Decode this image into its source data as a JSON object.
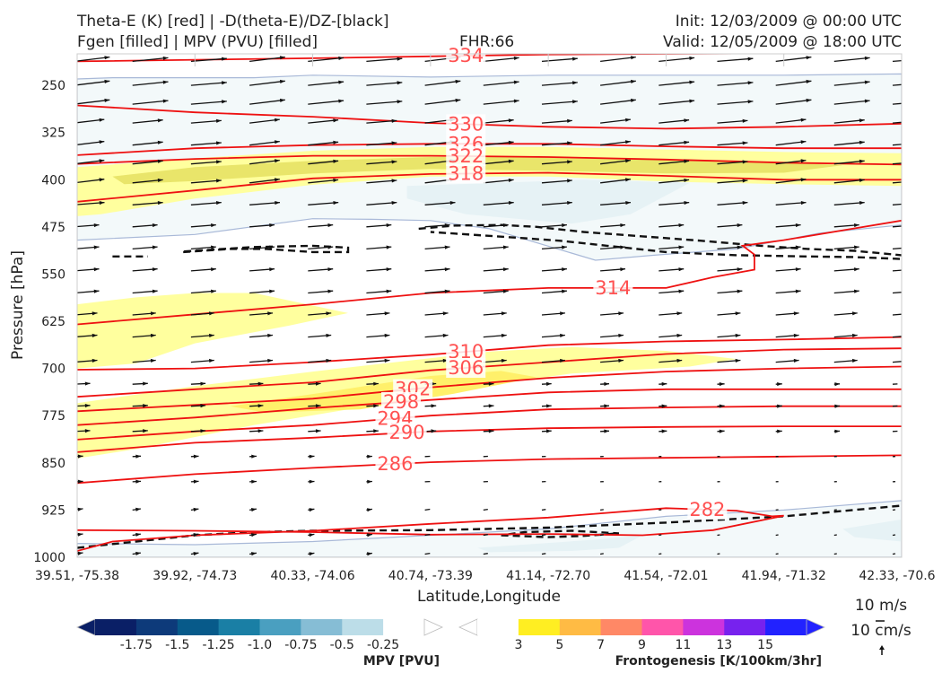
{
  "header": {
    "title_line1": "Theta-E (K) [red] | -D(theta-E)/DZ-[black]",
    "title_line2": "Fgen [filled] | MPV (PVU) [filled]",
    "fhr": "FHR:66",
    "init": "Init: 12/03/2009 @ 00:00 UTC",
    "valid": "Valid: 12/05/2009 @ 18:00 UTC"
  },
  "chart_data": {
    "type": "cross-section",
    "xlabel": "Latitude,Longitude",
    "ylabel": "Pressure [hPa]",
    "x_ticks": [
      "39.51, -75.38",
      "39.92, -74.73",
      "40.33, -74.06",
      "40.74, -73.39",
      "41.14, -72.70",
      "41.54, -72.01",
      "41.94, -71.32",
      "42.33, -70.6"
    ],
    "y_ticks": [
      250,
      325,
      400,
      475,
      550,
      625,
      700,
      775,
      850,
      925,
      1000
    ],
    "ylim": [
      1000,
      200
    ],
    "theta_e_contours": [
      {
        "value": 334,
        "label": "334",
        "p": [
          [
            0,
            212
          ],
          [
            2,
            207
          ],
          [
            4,
            201
          ],
          [
            6,
            199
          ],
          [
            7,
            199
          ]
        ],
        "lx": 3.3
      },
      {
        "value": 330,
        "label": "330",
        "p": [
          [
            0,
            282
          ],
          [
            1,
            293
          ],
          [
            2,
            300
          ],
          [
            3,
            310
          ],
          [
            4,
            316
          ],
          [
            5,
            319
          ],
          [
            6,
            316
          ],
          [
            7,
            311
          ]
        ],
        "lx": 3.3
      },
      {
        "value": 326,
        "label": "326",
        "p": [
          [
            0,
            361
          ],
          [
            1,
            350
          ],
          [
            2,
            345
          ],
          [
            3,
            343
          ],
          [
            4,
            343
          ],
          [
            5,
            347
          ],
          [
            6,
            350
          ],
          [
            7,
            350
          ]
        ],
        "lx": 3.3
      },
      {
        "value": 322,
        "label": "322",
        "p": [
          [
            0,
            375
          ],
          [
            1,
            367
          ],
          [
            2,
            362
          ],
          [
            3,
            362
          ],
          [
            4,
            364
          ],
          [
            5,
            368
          ],
          [
            6,
            373
          ],
          [
            7,
            376
          ]
        ],
        "lx": 3.3
      },
      {
        "value": 318,
        "label": "318",
        "p": [
          [
            0,
            435
          ],
          [
            1,
            417
          ],
          [
            2,
            398
          ],
          [
            3,
            391
          ],
          [
            4,
            389
          ],
          [
            5,
            394
          ],
          [
            6,
            400
          ],
          [
            7,
            400
          ]
        ],
        "lx": 3.3
      },
      {
        "value": 314,
        "label": "314",
        "p": [
          [
            0,
            630
          ],
          [
            1,
            614
          ],
          [
            2,
            598
          ],
          [
            3,
            580
          ],
          [
            4,
            572
          ],
          [
            5,
            572
          ],
          [
            5.4,
            555
          ],
          [
            5.75,
            543
          ],
          [
            5.75,
            519
          ],
          [
            5.65,
            505
          ],
          [
            6,
            496
          ],
          [
            7,
            465
          ]
        ],
        "lx": 4.55
      },
      {
        "value": 310,
        "label": "310",
        "p": [
          [
            0,
            702
          ],
          [
            1,
            700
          ],
          [
            2,
            690
          ],
          [
            3,
            678
          ],
          [
            4,
            663
          ],
          [
            5,
            657
          ],
          [
            6,
            654
          ],
          [
            7,
            650
          ]
        ],
        "lx": 3.3
      },
      {
        "value": 306,
        "label": "306",
        "p": [
          [
            0,
            745
          ],
          [
            1,
            733
          ],
          [
            2,
            722
          ],
          [
            3,
            703
          ],
          [
            4,
            690
          ],
          [
            5,
            677
          ],
          [
            6,
            670
          ],
          [
            7,
            668
          ]
        ],
        "lx": 3.3
      },
      {
        "value": 302,
        "label": "302",
        "p": [
          [
            0,
            768
          ],
          [
            1,
            758
          ],
          [
            2,
            748
          ],
          [
            3,
            730
          ],
          [
            4,
            715
          ],
          [
            5,
            705
          ],
          [
            6,
            700
          ],
          [
            7,
            697
          ]
        ],
        "lx": 2.85
      },
      {
        "value": 298,
        "label": "298",
        "p": [
          [
            0,
            790
          ],
          [
            1,
            778
          ],
          [
            2,
            763
          ],
          [
            3,
            750
          ],
          [
            4,
            738
          ],
          [
            5,
            733
          ],
          [
            6,
            733
          ],
          [
            7,
            733
          ]
        ],
        "lx": 2.75
      },
      {
        "value": 294,
        "label": "294",
        "p": [
          [
            0,
            813
          ],
          [
            1,
            800
          ],
          [
            2,
            790
          ],
          [
            3,
            775
          ],
          [
            4,
            765
          ],
          [
            5,
            762
          ],
          [
            6,
            760
          ],
          [
            7,
            760
          ]
        ],
        "lx": 2.7
      },
      {
        "value": 290,
        "label": "290",
        "p": [
          [
            0,
            833
          ],
          [
            1,
            818
          ],
          [
            2,
            810
          ],
          [
            3,
            800
          ],
          [
            4,
            795
          ],
          [
            5,
            793
          ],
          [
            6,
            792
          ],
          [
            7,
            792
          ]
        ],
        "lx": 2.8
      },
      {
        "value": 286,
        "label": "286",
        "p": [
          [
            0,
            882
          ],
          [
            1,
            868
          ],
          [
            2,
            858
          ],
          [
            3,
            849
          ],
          [
            4,
            844
          ],
          [
            5,
            842
          ],
          [
            6,
            840
          ],
          [
            7,
            838
          ]
        ],
        "lx": 2.7
      },
      {
        "value": 282,
        "label": "282",
        "p": [
          [
            0,
            990
          ],
          [
            0.3,
            975
          ],
          [
            1,
            965
          ],
          [
            2,
            958
          ],
          [
            3,
            947
          ],
          [
            4,
            937
          ],
          [
            5,
            922
          ],
          [
            5.6,
            926
          ],
          [
            5.9,
            935
          ],
          [
            6,
            934
          ],
          [
            5.4,
            957
          ],
          [
            4.8,
            965
          ],
          [
            4,
            963
          ],
          [
            3,
            964
          ],
          [
            2,
            960
          ],
          [
            1,
            958
          ],
          [
            0,
            957
          ]
        ],
        "lx": 5.35
      }
    ],
    "colorbars": [
      {
        "title": "MPV [PVU]",
        "ticks": [
          "-1.75",
          "-1.5",
          "-1.25",
          "-1.0",
          "-0.75",
          "-0.5",
          "-0.25"
        ],
        "colors": [
          "#0a1f66",
          "#0d3a7a",
          "#075a8a",
          "#1a7fa5",
          "#4a9fc0",
          "#86bdd5",
          "#bcdde8",
          "#ffffff"
        ]
      },
      {
        "title": "Frontogenesis [K/100km/3hr]",
        "ticks": [
          "3",
          "5",
          "7",
          "9",
          "11",
          "13",
          "15"
        ],
        "colors": [
          "#ffffff",
          "#ffee22",
          "#ffbb44",
          "#ff8866",
          "#ff55aa",
          "#cc33dd",
          "#7722ee",
          "#2222ff"
        ]
      }
    ],
    "vector_reference": [
      "10 m/s",
      "10 cm/s"
    ]
  }
}
